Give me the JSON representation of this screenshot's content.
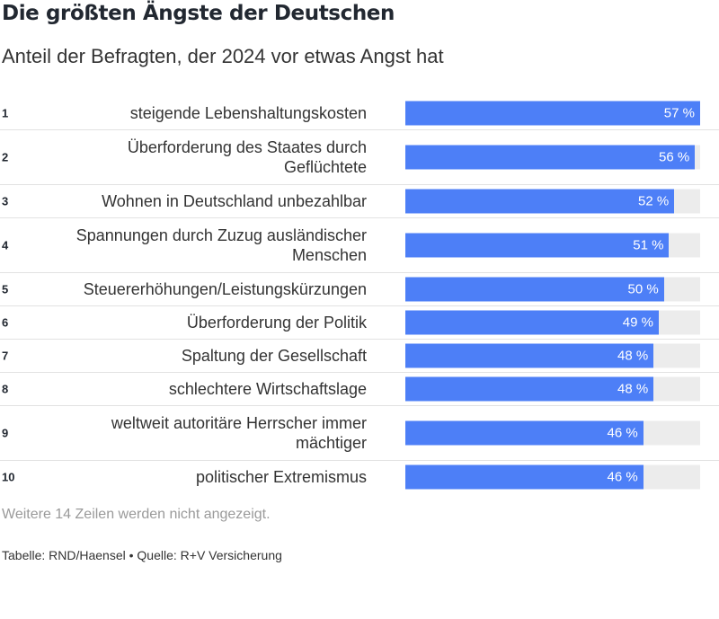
{
  "title": "Die größten Ängste der Deutschen",
  "subtitle": "Anteil der Befragten, der 2024 vor etwas Angst hat",
  "note": "Weitere 14 Zeilen werden nicht angezeigt.",
  "footer": "Tabelle: RND/Haensel • Quelle: R+V Versicherung",
  "colors": {
    "bar": "#4d7ff7",
    "track": "#ececec",
    "title": "#222831"
  },
  "chart_data": {
    "type": "bar",
    "orientation": "horizontal",
    "unit": "%",
    "xlim": [
      0,
      57
    ],
    "categories": [
      "steigende Lebenshaltungskosten",
      "Überforderung des Staates durch Geflüchtete",
      "Wohnen in Deutschland unbezahlbar",
      "Spannungen durch Zuzug ausländischer Menschen",
      "Steuererhöhungen/Leistungskürzungen",
      "Überforderung der Politik",
      "Spaltung der Gesellschaft",
      "schlechtere Wirtschaftslage",
      "weltweit autoritäre Herrscher immer mächtiger",
      "politischer Extremismus"
    ],
    "ranks": [
      "1",
      "2",
      "3",
      "4",
      "5",
      "6",
      "7",
      "8",
      "9",
      "10"
    ],
    "values": [
      57,
      56,
      52,
      51,
      50,
      49,
      48,
      48,
      46,
      46
    ],
    "data_labels": [
      "57 %",
      "56 %",
      "52 %",
      "51 %",
      "50 %",
      "49 %",
      "48 %",
      "48 %",
      "46 %",
      "46 %"
    ]
  }
}
